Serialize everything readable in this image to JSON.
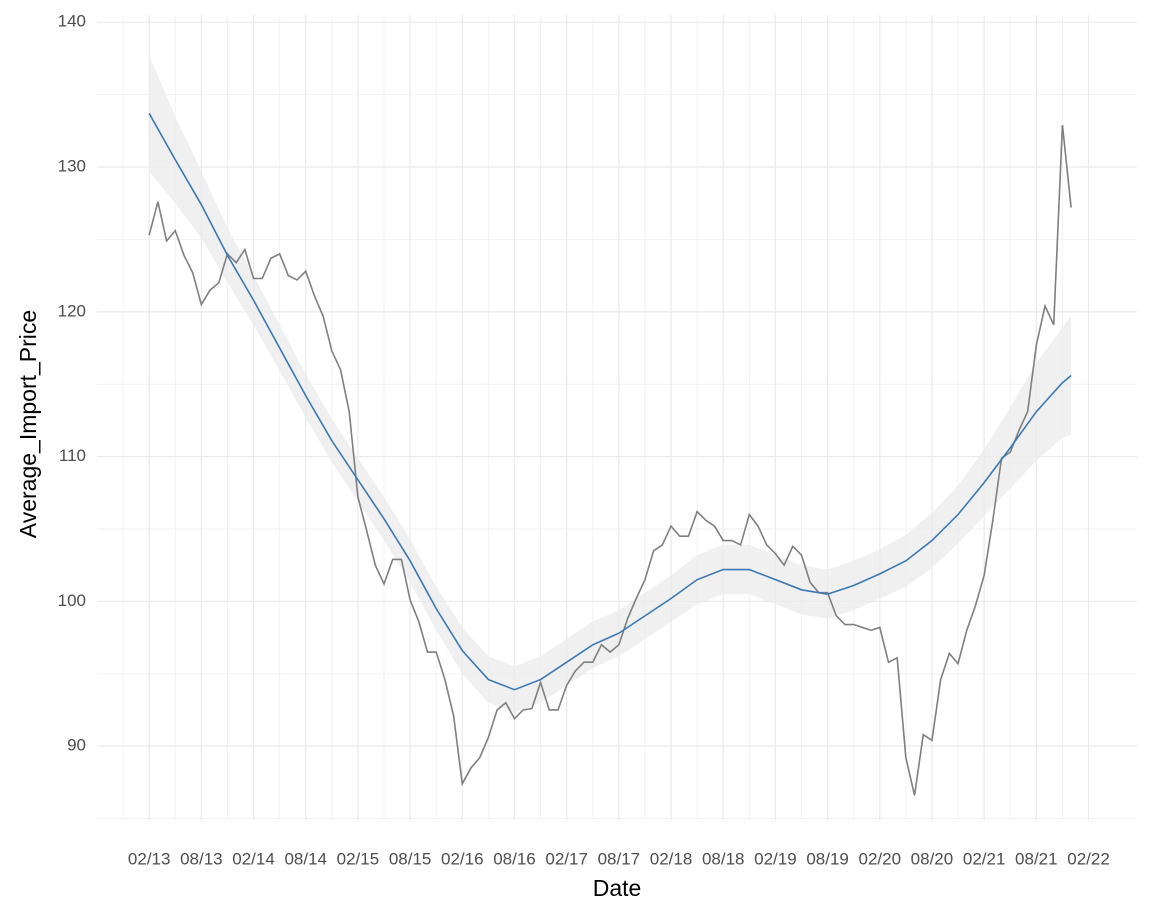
{
  "chart_data": {
    "type": "line",
    "x_label": "Date",
    "y_label": "Average_Import_Price",
    "xlim": [
      "08/12",
      "07/22"
    ],
    "xticks": [
      "02/13",
      "08/13",
      "02/14",
      "08/14",
      "02/15",
      "08/15",
      "02/16",
      "08/16",
      "02/17",
      "08/17",
      "02/18",
      "08/18",
      "02/19",
      "08/19",
      "02/20",
      "08/20",
      "02/21",
      "08/21",
      "02/22"
    ],
    "ylim": [
      84.9,
      140.5
    ],
    "yticks": [
      90,
      100,
      110,
      120,
      130,
      140
    ],
    "grid": true,
    "minor_grid": true,
    "series": [
      {
        "name": "Average_Import_Price",
        "color": "#7f7f7f",
        "x": [
          "02/13",
          "03/13",
          "04/13",
          "05/13",
          "06/13",
          "07/13",
          "08/13",
          "09/13",
          "10/13",
          "11/13",
          "12/13",
          "01/14",
          "02/14",
          "03/14",
          "04/14",
          "05/14",
          "06/14",
          "07/14",
          "08/14",
          "09/14",
          "10/14",
          "11/14",
          "12/14",
          "01/15",
          "02/15",
          "03/15",
          "04/15",
          "05/15",
          "06/15",
          "07/15",
          "08/15",
          "09/15",
          "10/15",
          "11/15",
          "12/15",
          "01/16",
          "02/16",
          "03/16",
          "04/16",
          "05/16",
          "06/16",
          "07/16",
          "08/16",
          "09/16",
          "10/16",
          "11/16",
          "12/16",
          "01/17",
          "02/17",
          "03/17",
          "04/17",
          "05/17",
          "06/17",
          "07/17",
          "08/17",
          "09/17",
          "10/17",
          "11/17",
          "12/17",
          "01/18",
          "02/18",
          "03/18",
          "04/18",
          "05/18",
          "06/18",
          "07/18",
          "08/18",
          "09/18",
          "10/18",
          "11/18",
          "12/18",
          "01/19",
          "02/19",
          "03/19",
          "04/19",
          "05/19",
          "06/19",
          "07/19",
          "08/19",
          "09/19",
          "10/19",
          "11/19",
          "12/19",
          "01/20",
          "02/20",
          "03/20",
          "04/20",
          "05/20",
          "06/20",
          "07/20",
          "08/20",
          "09/20",
          "10/20",
          "11/20",
          "12/20",
          "01/21",
          "02/21",
          "03/21",
          "04/21",
          "05/21",
          "06/21",
          "07/21",
          "08/21",
          "09/21",
          "10/21",
          "11/21",
          "12/21"
        ],
        "values": [
          125.3,
          127.6,
          124.9,
          125.6,
          123.9,
          122.7,
          120.5,
          121.5,
          122.0,
          124.0,
          123.4,
          124.3,
          122.3,
          122.3,
          123.7,
          124.0,
          122.5,
          122.2,
          122.8,
          121.1,
          119.7,
          117.3,
          116.0,
          113.1,
          107.2,
          104.9,
          102.5,
          101.2,
          102.9,
          102.9,
          100.1,
          98.6,
          96.5,
          96.5,
          94.6,
          92.1,
          87.4,
          88.5,
          89.2,
          90.6,
          92.5,
          93.0,
          91.9,
          92.5,
          92.6,
          94.4,
          92.5,
          92.5,
          94.2,
          95.2,
          95.8,
          95.8,
          97.0,
          96.5,
          97.0,
          98.8,
          100.2,
          101.5,
          103.5,
          103.9,
          105.2,
          104.5,
          104.5,
          106.2,
          105.6,
          105.2,
          104.2,
          104.2,
          103.9,
          106.0,
          105.2,
          103.9,
          103.3,
          102.5,
          103.8,
          103.2,
          101.3,
          100.6,
          100.6,
          99.0,
          98.4,
          98.4,
          98.2,
          98.0,
          98.2,
          95.8,
          96.1,
          89.2,
          86.6,
          90.8,
          90.4,
          94.6,
          96.4,
          95.7,
          98.0,
          99.7,
          101.8,
          105.6,
          109.9,
          110.3,
          111.8,
          113.1,
          117.7,
          120.4,
          119.1,
          132.9,
          127.2
        ]
      },
      {
        "name": "Smooth",
        "color": "#3a78b5",
        "band_color": "#ebebeb",
        "x": [
          "02/13",
          "05/13",
          "08/13",
          "11/13",
          "02/14",
          "05/14",
          "08/14",
          "11/14",
          "02/15",
          "05/15",
          "08/15",
          "11/15",
          "02/16",
          "05/16",
          "08/16",
          "11/16",
          "02/17",
          "05/17",
          "08/17",
          "11/17",
          "02/18",
          "05/18",
          "08/18",
          "11/18",
          "02/19",
          "05/19",
          "08/19",
          "11/19",
          "02/20",
          "05/20",
          "08/20",
          "11/20",
          "02/21",
          "05/21",
          "08/21",
          "11/21",
          "12/21"
        ],
        "values": [
          133.7,
          130.5,
          127.4,
          123.9,
          120.8,
          117.5,
          114.2,
          111.1,
          108.4,
          105.7,
          102.8,
          99.5,
          96.6,
          94.6,
          93.9,
          94.6,
          95.8,
          97.0,
          97.8,
          99.0,
          100.2,
          101.5,
          102.2,
          102.2,
          101.5,
          100.8,
          100.5,
          101.1,
          101.9,
          102.8,
          104.2,
          106.0,
          108.2,
          110.6,
          113.1,
          115.1,
          115.6
        ],
        "lower": [
          129.7,
          127.5,
          125.1,
          122.0,
          119.1,
          115.9,
          112.7,
          109.6,
          106.9,
          104.2,
          101.3,
          98.0,
          95.0,
          93.0,
          92.3,
          93.0,
          94.2,
          95.4,
          96.2,
          97.4,
          98.6,
          99.8,
          100.5,
          100.5,
          99.8,
          99.1,
          98.8,
          99.4,
          100.2,
          101.0,
          102.3,
          104.0,
          105.9,
          107.8,
          109.7,
          111.3,
          111.5
        ],
        "upper": [
          137.7,
          133.5,
          129.7,
          125.8,
          122.5,
          119.1,
          115.7,
          112.6,
          109.9,
          107.2,
          104.3,
          101.0,
          98.2,
          96.2,
          95.5,
          96.2,
          97.4,
          98.6,
          99.4,
          100.6,
          101.8,
          103.2,
          103.9,
          103.9,
          103.2,
          102.5,
          102.2,
          102.8,
          103.6,
          104.6,
          106.1,
          108.0,
          110.5,
          113.4,
          116.5,
          118.9,
          119.7
        ]
      }
    ]
  }
}
